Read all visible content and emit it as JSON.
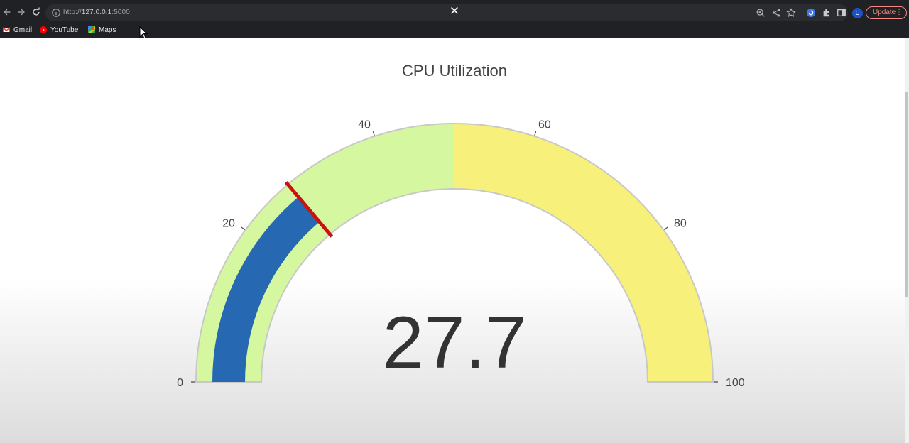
{
  "browser": {
    "url_scheme": "http://",
    "url_host": "127.0.0.1",
    "url_port": ":5000",
    "update_label": "Update",
    "avatar_letter": "C",
    "close_glyph": "✕"
  },
  "bookmarks": [
    {
      "label": "Gmail",
      "icon": "gmail-icon"
    },
    {
      "label": "YouTube",
      "icon": "youtube-icon"
    },
    {
      "label": "Maps",
      "icon": "maps-icon"
    }
  ],
  "chart_data": {
    "type": "gauge",
    "title": "CPU Utilization",
    "value": 27.7,
    "value_label": "27.7",
    "range": [
      0,
      100
    ],
    "threshold": 27.7,
    "ticks": [
      0,
      20,
      40,
      60,
      80,
      100
    ],
    "tick_labels": [
      "0",
      "20",
      "40",
      "60",
      "80",
      "100"
    ],
    "steps": [
      {
        "range": [
          0,
          50
        ],
        "color": "#d4f7a0"
      },
      {
        "range": [
          50,
          100
        ],
        "color": "#f7f07a"
      }
    ],
    "bar_color": "#2668b2",
    "threshold_color": "#cc1111"
  }
}
